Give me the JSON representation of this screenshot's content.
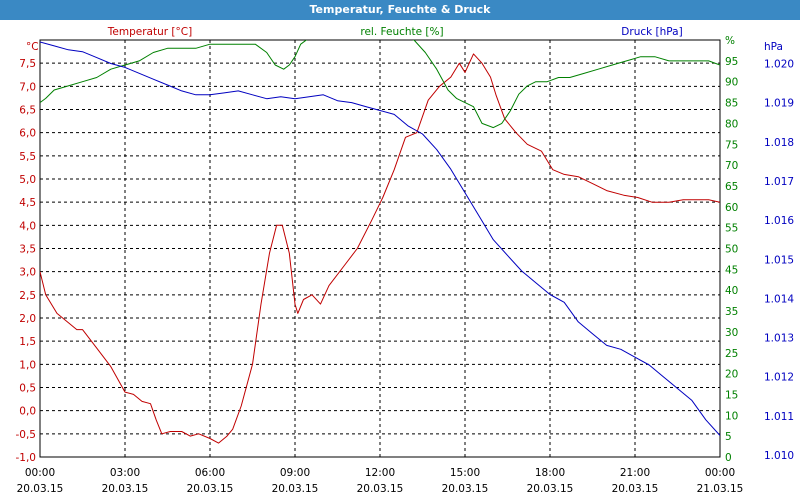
{
  "window": {
    "title": "Temperatur, Feuchte & Druck"
  },
  "chart_data": {
    "type": "line",
    "title": "Temperatur, Feuchte & Druck",
    "grid": true,
    "colors": {
      "temperature": "#c00000",
      "humidity": "#008000",
      "pressure": "#0000c0",
      "titlebar": "#3a89c4",
      "grid": "#000000"
    },
    "x_ticks": [
      {
        "time": "00:00",
        "date": "20.03.15"
      },
      {
        "time": "03:00",
        "date": "20.03.15"
      },
      {
        "time": "06:00",
        "date": "20.03.15"
      },
      {
        "time": "09:00",
        "date": "20.03.15"
      },
      {
        "time": "12:00",
        "date": "20.03.15"
      },
      {
        "time": "15:00",
        "date": "20.03.15"
      },
      {
        "time": "18:00",
        "date": "20.03.15"
      },
      {
        "time": "21:00",
        "date": "20.03.15"
      },
      {
        "time": "00:00",
        "date": "21.03.15"
      }
    ],
    "x_range_hours": [
      0,
      24
    ],
    "axes": {
      "left": {
        "unit": "°C",
        "range": [
          -1.0,
          8.0
        ],
        "step": 0.5,
        "ticks": [
          "-1,0",
          "-0,5",
          "0,0",
          "0,5",
          "1,0",
          "1,5",
          "2,0",
          "2,5",
          "3,0",
          "3,5",
          "4,0",
          "4,5",
          "5,0",
          "5,5",
          "6,0",
          "6,5",
          "7,0",
          "7,5"
        ]
      },
      "right1": {
        "unit": "%",
        "range": [
          0,
          100
        ],
        "step": 5,
        "ticks": [
          "0",
          "5",
          "10",
          "15",
          "20",
          "25",
          "30",
          "35",
          "40",
          "45",
          "50",
          "55",
          "60",
          "65",
          "70",
          "75",
          "80",
          "85",
          "90",
          "95",
          "%"
        ]
      },
      "right2": {
        "unit": "hPa",
        "range": [
          1009.95,
          1020.6
        ],
        "ticks": [
          "1.010",
          "1.011",
          "1.012",
          "1.013",
          "1.014",
          "1.015",
          "1.016",
          "1.017",
          "1.018",
          "1.019",
          "1.020",
          "hPa"
        ]
      }
    },
    "series": [
      {
        "name": "Temperatur [°C]",
        "axis": "left",
        "color": "#c00000",
        "points": [
          [
            0,
            3.0
          ],
          [
            0.2,
            2.5
          ],
          [
            0.6,
            2.1
          ],
          [
            1.0,
            1.9
          ],
          [
            1.3,
            1.75
          ],
          [
            1.5,
            1.75
          ],
          [
            2.0,
            1.35
          ],
          [
            2.5,
            0.95
          ],
          [
            3.0,
            0.4
          ],
          [
            3.3,
            0.35
          ],
          [
            3.6,
            0.2
          ],
          [
            3.9,
            0.15
          ],
          [
            4.1,
            -0.2
          ],
          [
            4.3,
            -0.5
          ],
          [
            4.6,
            -0.45
          ],
          [
            5.0,
            -0.45
          ],
          [
            5.3,
            -0.55
          ],
          [
            5.6,
            -0.5
          ],
          [
            6.0,
            -0.6
          ],
          [
            6.3,
            -0.7
          ],
          [
            6.6,
            -0.55
          ],
          [
            6.8,
            -0.4
          ],
          [
            7.1,
            0.1
          ],
          [
            7.5,
            1.0
          ],
          [
            7.8,
            2.3
          ],
          [
            8.1,
            3.4
          ],
          [
            8.35,
            4.0
          ],
          [
            8.55,
            4.0
          ],
          [
            8.8,
            3.4
          ],
          [
            9.0,
            2.3
          ],
          [
            9.1,
            2.1
          ],
          [
            9.3,
            2.4
          ],
          [
            9.6,
            2.5
          ],
          [
            9.9,
            2.3
          ],
          [
            10.2,
            2.7
          ],
          [
            10.7,
            3.1
          ],
          [
            11.2,
            3.5
          ],
          [
            11.7,
            4.1
          ],
          [
            12.1,
            4.6
          ],
          [
            12.5,
            5.2
          ],
          [
            12.9,
            5.9
          ],
          [
            13.3,
            6.0
          ],
          [
            13.7,
            6.7
          ],
          [
            14.1,
            7.0
          ],
          [
            14.5,
            7.2
          ],
          [
            14.8,
            7.5
          ],
          [
            15.0,
            7.3
          ],
          [
            15.3,
            7.7
          ],
          [
            15.6,
            7.5
          ],
          [
            15.9,
            7.2
          ],
          [
            16.1,
            6.8
          ],
          [
            16.4,
            6.3
          ],
          [
            16.8,
            6.0
          ],
          [
            17.2,
            5.75
          ],
          [
            17.7,
            5.6
          ],
          [
            18.1,
            5.2
          ],
          [
            18.5,
            5.1
          ],
          [
            19.0,
            5.05
          ],
          [
            19.5,
            4.9
          ],
          [
            20.0,
            4.75
          ],
          [
            20.6,
            4.65
          ],
          [
            21.1,
            4.6
          ],
          [
            21.6,
            4.5
          ],
          [
            22.2,
            4.5
          ],
          [
            22.7,
            4.55
          ],
          [
            23.2,
            4.55
          ],
          [
            23.6,
            4.55
          ],
          [
            24.0,
            4.5
          ]
        ]
      },
      {
        "name": "rel. Feuchte [%]",
        "axis": "right1",
        "color": "#008000",
        "points": [
          [
            0,
            85
          ],
          [
            0.2,
            86
          ],
          [
            0.5,
            88
          ],
          [
            1.0,
            89
          ],
          [
            1.5,
            90
          ],
          [
            2.0,
            91
          ],
          [
            2.5,
            93
          ],
          [
            3.0,
            94
          ],
          [
            3.5,
            95
          ],
          [
            4.0,
            97
          ],
          [
            4.5,
            98
          ],
          [
            5.0,
            98
          ],
          [
            5.5,
            98
          ],
          [
            6.0,
            99
          ],
          [
            6.5,
            99
          ],
          [
            7.0,
            99
          ],
          [
            7.6,
            99
          ],
          [
            8.0,
            97
          ],
          [
            8.3,
            94
          ],
          [
            8.6,
            93
          ],
          [
            8.8,
            94
          ],
          [
            9.0,
            96
          ],
          [
            9.2,
            99
          ],
          [
            9.6,
            101
          ],
          [
            10.5,
            101
          ],
          [
            11.5,
            101
          ],
          [
            12.5,
            101
          ],
          [
            13.2,
            100
          ],
          [
            13.6,
            97
          ],
          [
            14.0,
            93
          ],
          [
            14.4,
            88
          ],
          [
            14.7,
            86
          ],
          [
            15.0,
            85
          ],
          [
            15.3,
            84
          ],
          [
            15.6,
            80
          ],
          [
            16.0,
            79
          ],
          [
            16.3,
            80
          ],
          [
            16.6,
            83
          ],
          [
            16.9,
            87
          ],
          [
            17.2,
            89
          ],
          [
            17.5,
            90
          ],
          [
            17.9,
            90
          ],
          [
            18.3,
            91
          ],
          [
            18.7,
            91
          ],
          [
            19.2,
            92
          ],
          [
            19.7,
            93
          ],
          [
            20.2,
            94
          ],
          [
            20.7,
            95
          ],
          [
            21.2,
            96
          ],
          [
            21.7,
            96
          ],
          [
            22.2,
            95
          ],
          [
            22.7,
            95
          ],
          [
            23.2,
            95
          ],
          [
            23.6,
            95
          ],
          [
            24.0,
            94
          ]
        ]
      },
      {
        "name": "Druck [hPa]",
        "axis": "right2",
        "color": "#0000c0",
        "points": [
          [
            0,
            1020.55
          ],
          [
            0.5,
            1020.45
          ],
          [
            1.0,
            1020.35
          ],
          [
            1.5,
            1020.3
          ],
          [
            2.0,
            1020.15
          ],
          [
            2.5,
            1020.0
          ],
          [
            3.0,
            1019.9
          ],
          [
            3.5,
            1019.75
          ],
          [
            4.0,
            1019.6
          ],
          [
            4.5,
            1019.45
          ],
          [
            5.0,
            1019.3
          ],
          [
            5.5,
            1019.2
          ],
          [
            6.0,
            1019.2
          ],
          [
            6.5,
            1019.25
          ],
          [
            7.0,
            1019.3
          ],
          [
            7.5,
            1019.2
          ],
          [
            8.0,
            1019.1
          ],
          [
            8.5,
            1019.15
          ],
          [
            9.0,
            1019.1
          ],
          [
            9.5,
            1019.15
          ],
          [
            10.0,
            1019.2
          ],
          [
            10.5,
            1019.05
          ],
          [
            11.0,
            1019.0
          ],
          [
            11.5,
            1018.9
          ],
          [
            12.0,
            1018.8
          ],
          [
            12.5,
            1018.7
          ],
          [
            13.0,
            1018.4
          ],
          [
            13.5,
            1018.2
          ],
          [
            14.0,
            1017.8
          ],
          [
            14.5,
            1017.3
          ],
          [
            15.0,
            1016.7
          ],
          [
            15.5,
            1016.1
          ],
          [
            16.0,
            1015.5
          ],
          [
            16.5,
            1015.1
          ],
          [
            17.0,
            1014.7
          ],
          [
            17.5,
            1014.4
          ],
          [
            18.0,
            1014.1
          ],
          [
            18.5,
            1013.9
          ],
          [
            19.0,
            1013.4
          ],
          [
            19.5,
            1013.1
          ],
          [
            20.0,
            1012.8
          ],
          [
            20.5,
            1012.7
          ],
          [
            21.0,
            1012.5
          ],
          [
            21.5,
            1012.3
          ],
          [
            22.0,
            1012.0
          ],
          [
            22.5,
            1011.7
          ],
          [
            23.0,
            1011.4
          ],
          [
            23.5,
            1010.9
          ],
          [
            24.0,
            1010.5
          ]
        ]
      }
    ]
  }
}
